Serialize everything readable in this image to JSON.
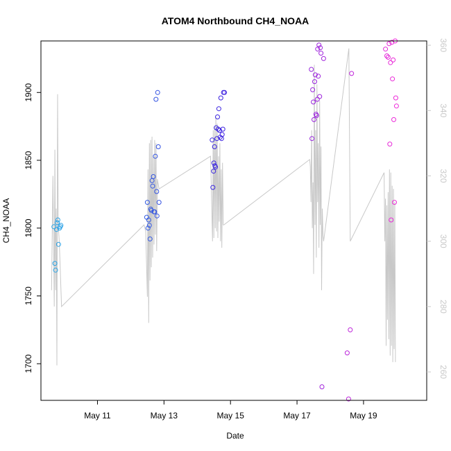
{
  "chart_data": {
    "type": "scatter",
    "title": "ATOM4 Northbound CH4_NOAA",
    "xlabel": "Date",
    "ylabel": "CH4_NOAA",
    "y2label": "",
    "x_ticks": [
      {
        "day": 11,
        "label": "May 11"
      },
      {
        "day": 13,
        "label": "May 13"
      },
      {
        "day": 15,
        "label": "May 15"
      },
      {
        "day": 17,
        "label": "May 17"
      },
      {
        "day": 19,
        "label": "May 19"
      }
    ],
    "xlim_days": [
      9.3,
      20.9
    ],
    "ylim": [
      1673,
      1938
    ],
    "y_ticks": [
      1700,
      1750,
      1800,
      1850,
      1900
    ],
    "y2lim": [
      251.3,
      361.3
    ],
    "y2_ticks": [
      260,
      280,
      300,
      320,
      340,
      360
    ],
    "grid": false,
    "colors": {
      "points_start": "#29a8e6",
      "points_mid": "#3b1ee0",
      "points_end": "#ee28d8",
      "line": "#c8c8c8",
      "axis": "#000000",
      "axis_right": "#c8c8c8"
    },
    "series": [
      {
        "kind": "points",
        "points": [
          [
            9.69,
            1801
          ],
          [
            9.72,
            1774
          ],
          [
            9.74,
            1769
          ],
          [
            9.77,
            1799
          ],
          [
            9.79,
            1804
          ],
          [
            9.81,
            1806
          ],
          [
            9.83,
            1788
          ],
          [
            9.86,
            1800
          ],
          [
            9.88,
            1801
          ],
          [
            9.9,
            1802
          ],
          [
            12.48,
            1808
          ],
          [
            12.5,
            1819
          ],
          [
            12.52,
            1800
          ],
          [
            12.54,
            1806
          ],
          [
            12.56,
            1802
          ],
          [
            12.58,
            1792
          ],
          [
            12.6,
            1814
          ],
          [
            12.62,
            1813
          ],
          [
            12.64,
            1835
          ],
          [
            12.66,
            1831
          ],
          [
            12.68,
            1838
          ],
          [
            12.7,
            1812
          ],
          [
            12.72,
            1812
          ],
          [
            12.74,
            1853
          ],
          [
            12.76,
            1895
          ],
          [
            12.78,
            1827
          ],
          [
            12.79,
            1809
          ],
          [
            12.81,
            1900
          ],
          [
            12.83,
            1860
          ],
          [
            12.85,
            1819
          ],
          [
            14.45,
            1865
          ],
          [
            14.47,
            1830
          ],
          [
            14.49,
            1842
          ],
          [
            14.5,
            1848
          ],
          [
            14.52,
            1860
          ],
          [
            14.53,
            1846
          ],
          [
            14.55,
            1845
          ],
          [
            14.57,
            1874
          ],
          [
            14.59,
            1866
          ],
          [
            14.61,
            1882
          ],
          [
            14.63,
            1873
          ],
          [
            14.65,
            1888
          ],
          [
            14.67,
            1872
          ],
          [
            14.69,
            1867
          ],
          [
            14.71,
            1896
          ],
          [
            14.73,
            1866
          ],
          [
            14.75,
            1869
          ],
          [
            14.77,
            1873
          ],
          [
            14.79,
            1900
          ],
          [
            14.82,
            1900
          ],
          [
            17.43,
            1917
          ],
          [
            17.45,
            1866
          ],
          [
            17.47,
            1902
          ],
          [
            17.49,
            1893
          ],
          [
            17.51,
            1880
          ],
          [
            17.53,
            1908
          ],
          [
            17.55,
            1913
          ],
          [
            17.57,
            1884
          ],
          [
            17.59,
            1883
          ],
          [
            17.61,
            1895
          ],
          [
            17.62,
            1932
          ],
          [
            17.64,
            1912
          ],
          [
            17.66,
            1935
          ],
          [
            17.68,
            1897
          ],
          [
            17.7,
            1933
          ],
          [
            17.72,
            1929
          ],
          [
            17.75,
            1683
          ],
          [
            17.8,
            1925
          ],
          [
            18.51,
            1708
          ],
          [
            18.55,
            1674
          ],
          [
            18.6,
            1725
          ],
          [
            18.64,
            1914
          ],
          [
            19.66,
            1932
          ],
          [
            19.7,
            1927
          ],
          [
            19.74,
            1926
          ],
          [
            19.77,
            1936
          ],
          [
            19.79,
            1862
          ],
          [
            19.81,
            1922
          ],
          [
            19.83,
            1806
          ],
          [
            19.85,
            1937
          ],
          [
            19.87,
            1910
          ],
          [
            19.89,
            1924
          ],
          [
            19.91,
            1880
          ],
          [
            19.93,
            1819
          ],
          [
            19.95,
            1938
          ],
          [
            19.97,
            1896
          ],
          [
            19.99,
            1890
          ]
        ]
      },
      {
        "kind": "line",
        "points": [
          [
            9.62,
            285
          ],
          [
            9.66,
            320
          ],
          [
            9.7,
            280
          ],
          [
            9.72,
            328
          ],
          [
            9.74,
            285
          ],
          [
            9.76,
            310
          ],
          [
            9.78,
            262
          ],
          [
            9.8,
            345
          ],
          [
            9.82,
            305
          ],
          [
            9.85,
            300
          ],
          [
            9.92,
            280
          ],
          [
            12.4,
            305
          ],
          [
            12.45,
            303
          ],
          [
            12.5,
            283
          ],
          [
            12.52,
            322
          ],
          [
            12.54,
            275
          ],
          [
            12.56,
            330
          ],
          [
            12.58,
            288
          ],
          [
            12.6,
            331
          ],
          [
            12.62,
            292
          ],
          [
            12.64,
            332
          ],
          [
            12.66,
            295
          ],
          [
            12.68,
            326
          ],
          [
            12.7,
            299
          ],
          [
            12.72,
            331
          ],
          [
            12.74,
            302
          ],
          [
            12.76,
            330
          ],
          [
            12.78,
            297
          ],
          [
            12.8,
            319
          ],
          [
            12.85,
            316
          ],
          [
            14.4,
            326
          ],
          [
            14.42,
            318
          ],
          [
            14.46,
            300
          ],
          [
            14.48,
            334
          ],
          [
            14.5,
            301
          ],
          [
            14.52,
            335
          ],
          [
            14.54,
            304
          ],
          [
            14.56,
            338
          ],
          [
            14.58,
            303
          ],
          [
            14.6,
            336
          ],
          [
            14.62,
            301
          ],
          [
            14.64,
            326
          ],
          [
            14.66,
            306
          ],
          [
            14.68,
            330
          ],
          [
            14.7,
            300
          ],
          [
            14.72,
            322
          ],
          [
            14.74,
            298
          ],
          [
            14.76,
            324
          ],
          [
            14.78,
            305
          ],
          [
            14.8,
            305
          ],
          [
            17.38,
            325
          ],
          [
            17.4,
            323
          ],
          [
            17.42,
            312
          ],
          [
            17.44,
            334
          ],
          [
            17.46,
            304
          ],
          [
            17.48,
            318
          ],
          [
            17.5,
            290
          ],
          [
            17.52,
            354
          ],
          [
            17.54,
            305
          ],
          [
            17.56,
            334
          ],
          [
            17.58,
            295
          ],
          [
            17.6,
            348
          ],
          [
            17.62,
            312
          ],
          [
            17.64,
            330
          ],
          [
            17.66,
            298
          ],
          [
            17.68,
            343
          ],
          [
            17.7,
            305
          ],
          [
            17.72,
            329
          ],
          [
            17.74,
            285
          ],
          [
            17.76,
            310
          ],
          [
            17.78,
            302
          ],
          [
            17.8,
            300
          ],
          [
            18.56,
            359
          ],
          [
            18.6,
            300
          ],
          [
            19.62,
            321
          ],
          [
            19.64,
            300
          ],
          [
            19.66,
            313
          ],
          [
            19.68,
            268
          ],
          [
            19.7,
            311
          ],
          [
            19.72,
            276
          ],
          [
            19.74,
            315
          ],
          [
            19.76,
            270
          ],
          [
            19.78,
            322
          ],
          [
            19.8,
            265
          ],
          [
            19.82,
            321
          ],
          [
            19.84,
            268
          ],
          [
            19.86,
            317
          ],
          [
            19.88,
            263
          ],
          [
            19.9,
            316
          ],
          [
            19.92,
            267
          ],
          [
            19.94,
            312
          ],
          [
            19.96,
            263
          ]
        ]
      }
    ]
  }
}
